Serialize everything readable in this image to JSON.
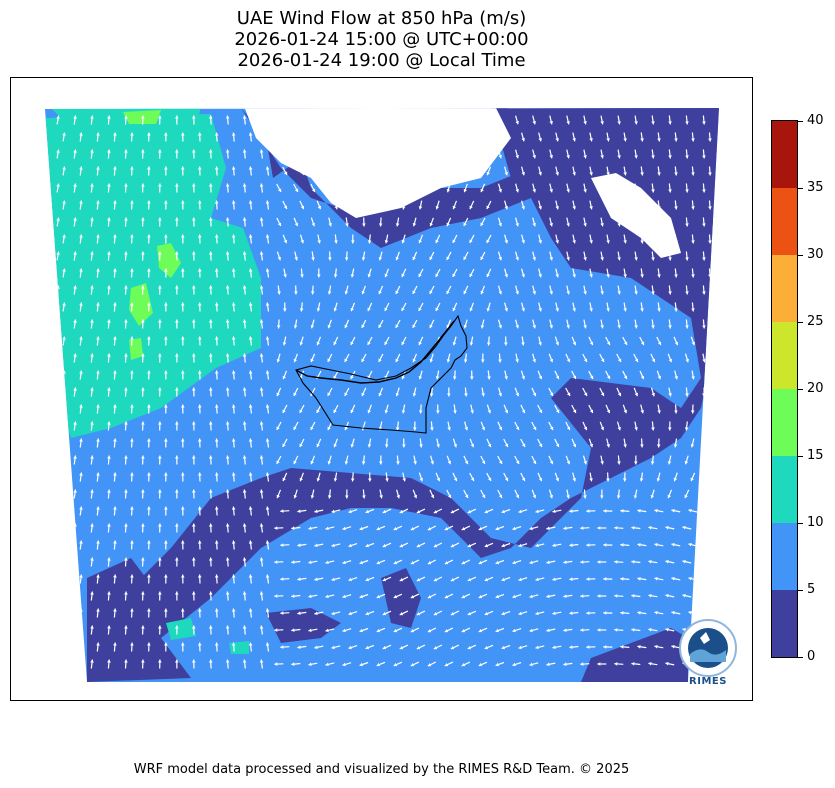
{
  "title": {
    "line1": "UAE Wind Flow at 850 hPa (m/s)",
    "line2": "2026-01-24 15:00 @ UTC+00:00",
    "line3": "2026-01-24 19:00 @ Local Time"
  },
  "colorbar": {
    "ticks": [
      "0",
      "5",
      "10",
      "15",
      "20",
      "25",
      "30",
      "35",
      "40"
    ],
    "colors": [
      "#3f3f9e",
      "#4394f7",
      "#1fd9be",
      "#6dfc58",
      "#cce72b",
      "#fcaf38",
      "#ec5214",
      "#a8150c"
    ]
  },
  "map": {
    "colors": {
      "calm": "#3f3f9e",
      "light": "#4394f7",
      "moderate": "#1fd9be",
      "fresh": "#6dfc58",
      "arrow": "#ffffff",
      "border": "#000000"
    },
    "features": [
      "wind-speed-shading",
      "wind-arrows",
      "uae-country-border"
    ]
  },
  "logo": {
    "text": "RIMES"
  },
  "credits": "WRF model data processed and visualized by the RIMES R&D Team. © 2025"
}
